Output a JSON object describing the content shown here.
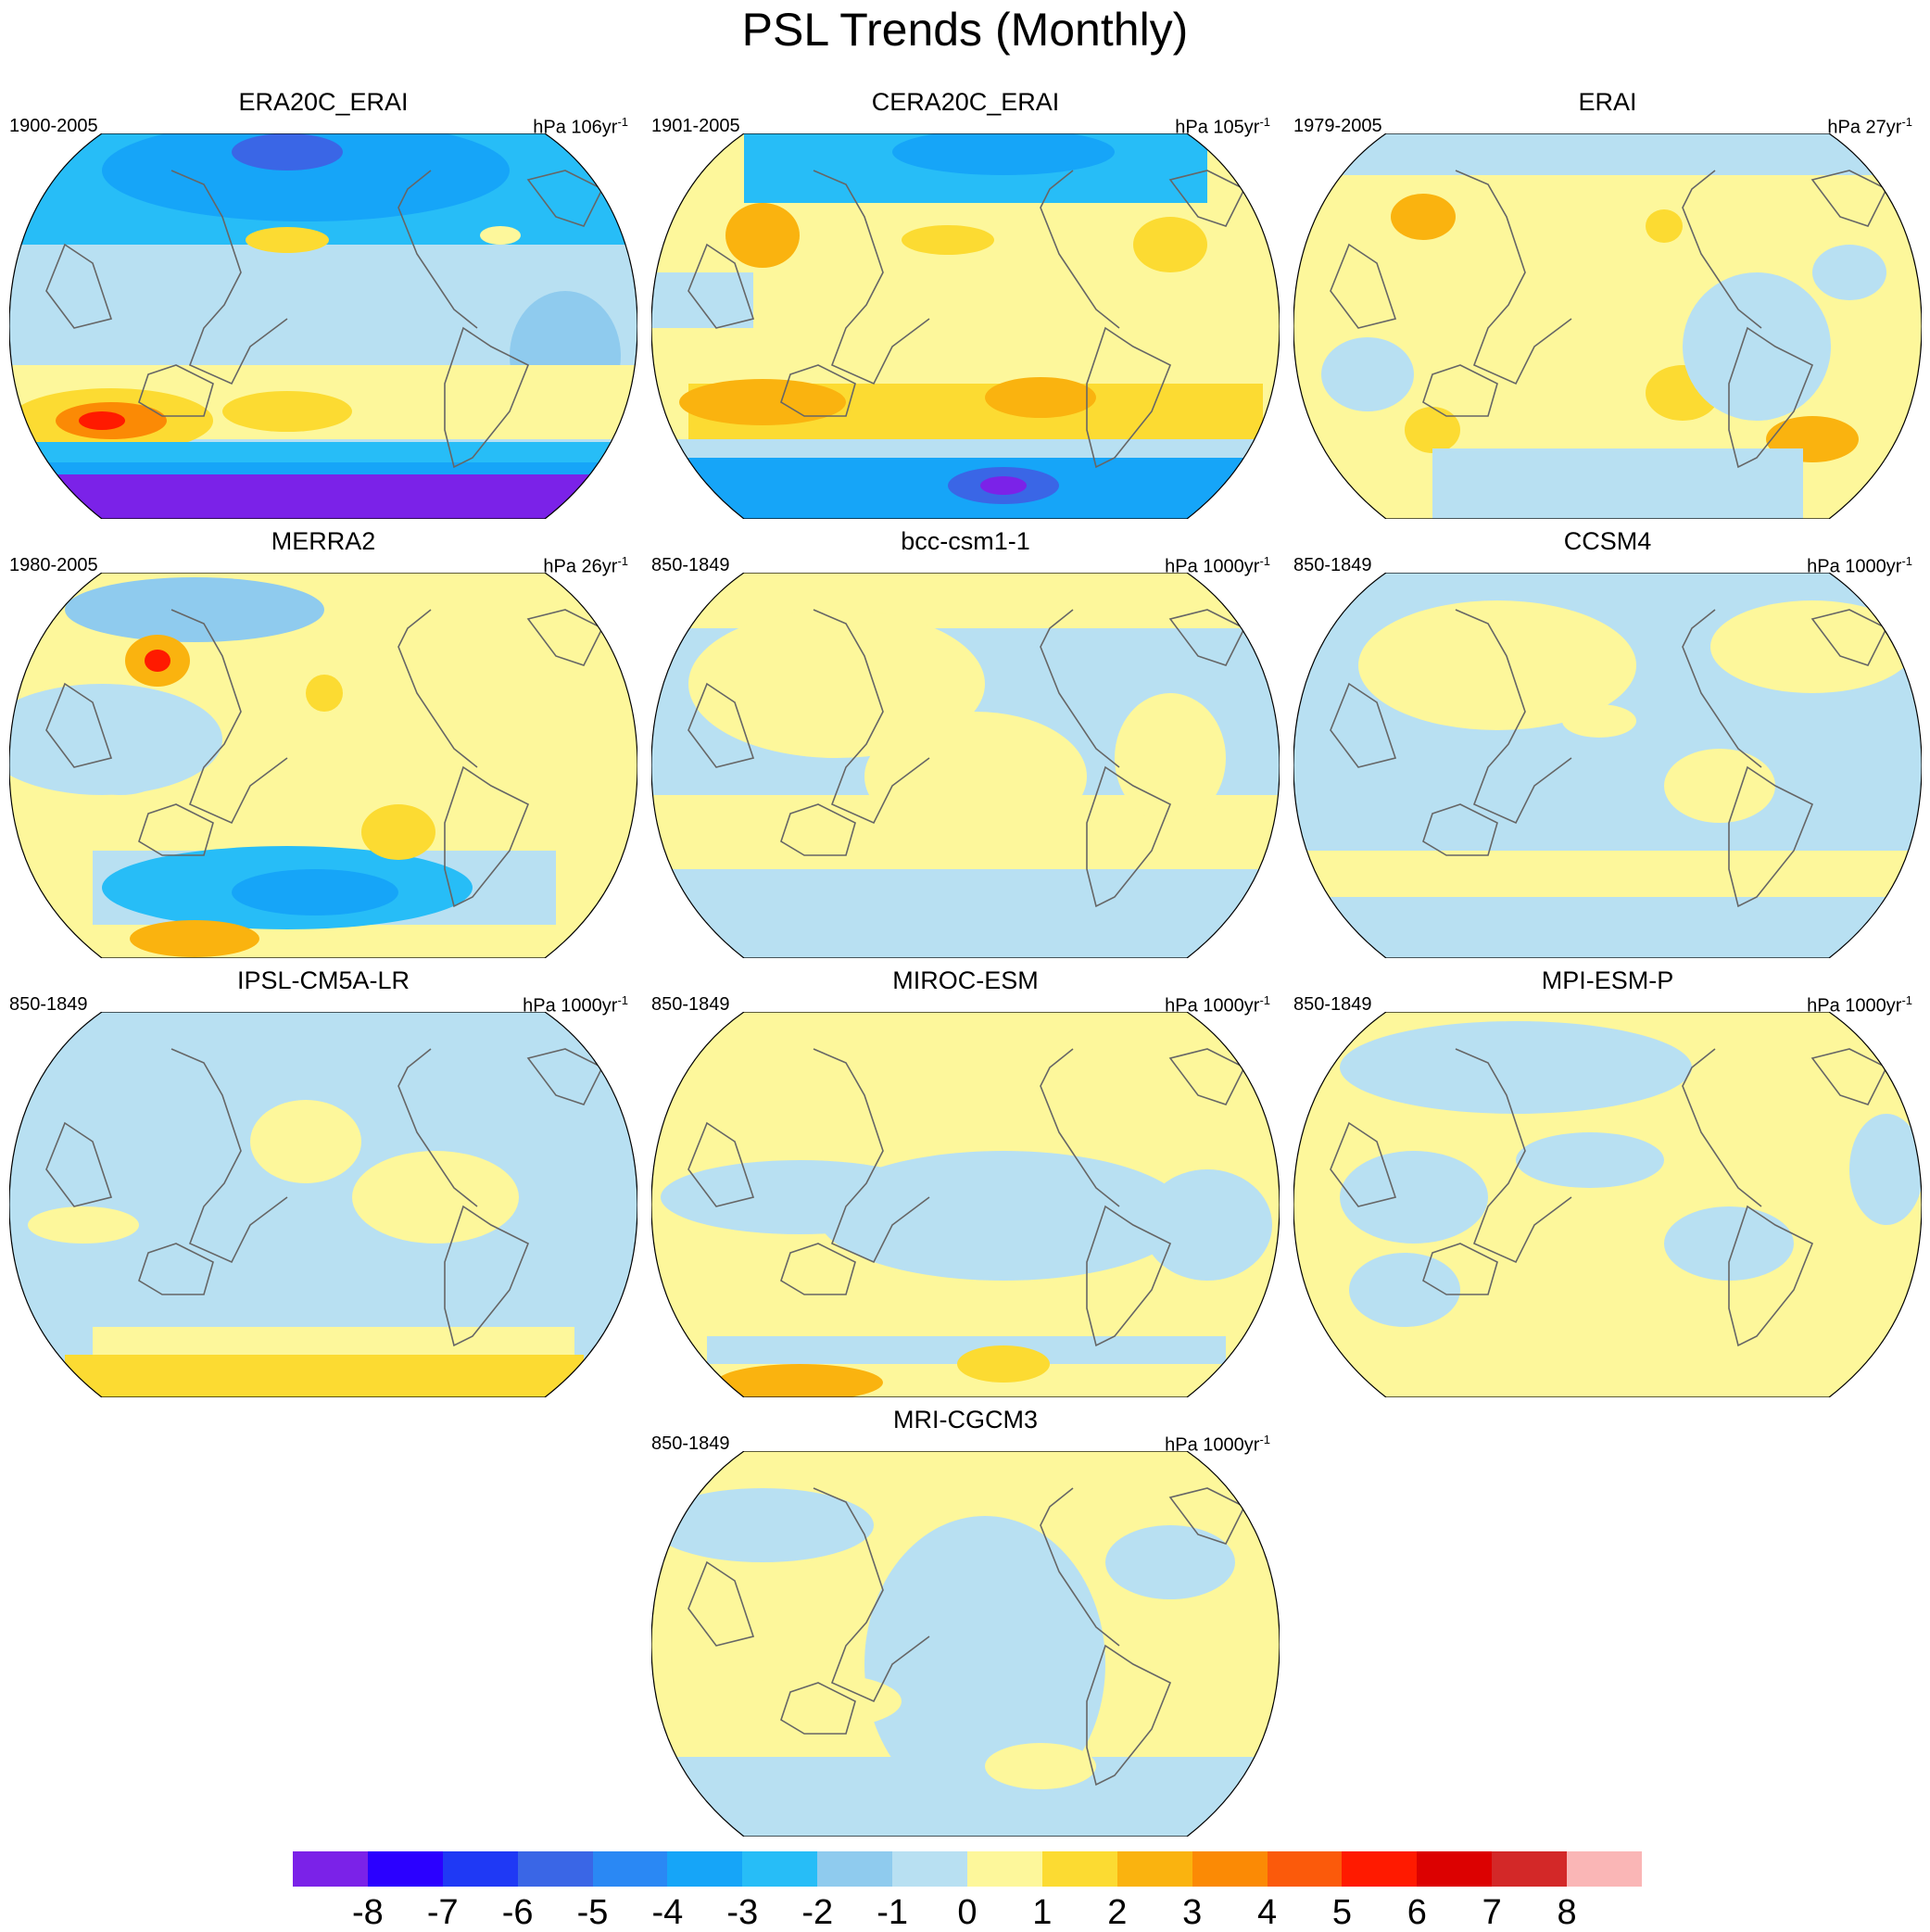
{
  "title": "PSL Trends (Monthly)",
  "panels": [
    {
      "name": "ERA20C_ERAI",
      "period": "1900-2005",
      "units": "hPa 106yr",
      "exp": "-1",
      "pattern": "era20c"
    },
    {
      "name": "CERA20C_ERAI",
      "period": "1901-2005",
      "units": "hPa 105yr",
      "exp": "-1",
      "pattern": "cera20c"
    },
    {
      "name": "ERAI",
      "period": "1979-2005",
      "units": "hPa 27yr",
      "exp": "-1",
      "pattern": "erai"
    },
    {
      "name": "MERRA2",
      "period": "1980-2005",
      "units": "hPa 26yr",
      "exp": "-1",
      "pattern": "merra2"
    },
    {
      "name": "bcc-csm1-1",
      "period": "850-1849",
      "units": "hPa 1000yr",
      "exp": "-1",
      "pattern": "model_a"
    },
    {
      "name": "CCSM4",
      "period": "850-1849",
      "units": "hPa 1000yr",
      "exp": "-1",
      "pattern": "model_b"
    },
    {
      "name": "IPSL-CM5A-LR",
      "period": "850-1849",
      "units": "hPa 1000yr",
      "exp": "-1",
      "pattern": "model_c"
    },
    {
      "name": "MIROC-ESM",
      "period": "850-1849",
      "units": "hPa 1000yr",
      "exp": "-1",
      "pattern": "model_d"
    },
    {
      "name": "MPI-ESM-P",
      "period": "850-1849",
      "units": "hPa 1000yr",
      "exp": "-1",
      "pattern": "model_e"
    },
    {
      "name": "MRI-CGCM3",
      "period": "850-1849",
      "units": "hPa 1000yr",
      "exp": "-1",
      "pattern": "model_f"
    }
  ],
  "colorbar": {
    "labels": [
      "-8",
      "-7",
      "-6",
      "-5",
      "-4",
      "-3",
      "-2",
      "-1",
      "0",
      "1",
      "2",
      "3",
      "4",
      "5",
      "6",
      "7",
      "8"
    ],
    "colors": [
      "#7b22e8",
      "#2b00ff",
      "#1f39f5",
      "#3a66e6",
      "#2a88f4",
      "#16a5f8",
      "#27bdf7",
      "#8fcbee",
      "#b8e0f2",
      "#fdf79b",
      "#fcdb32",
      "#fab30f",
      "#fb8a05",
      "#fb5a0b",
      "#ff1a00",
      "#dc0101",
      "#d32828",
      "#fab6b6"
    ]
  }
}
